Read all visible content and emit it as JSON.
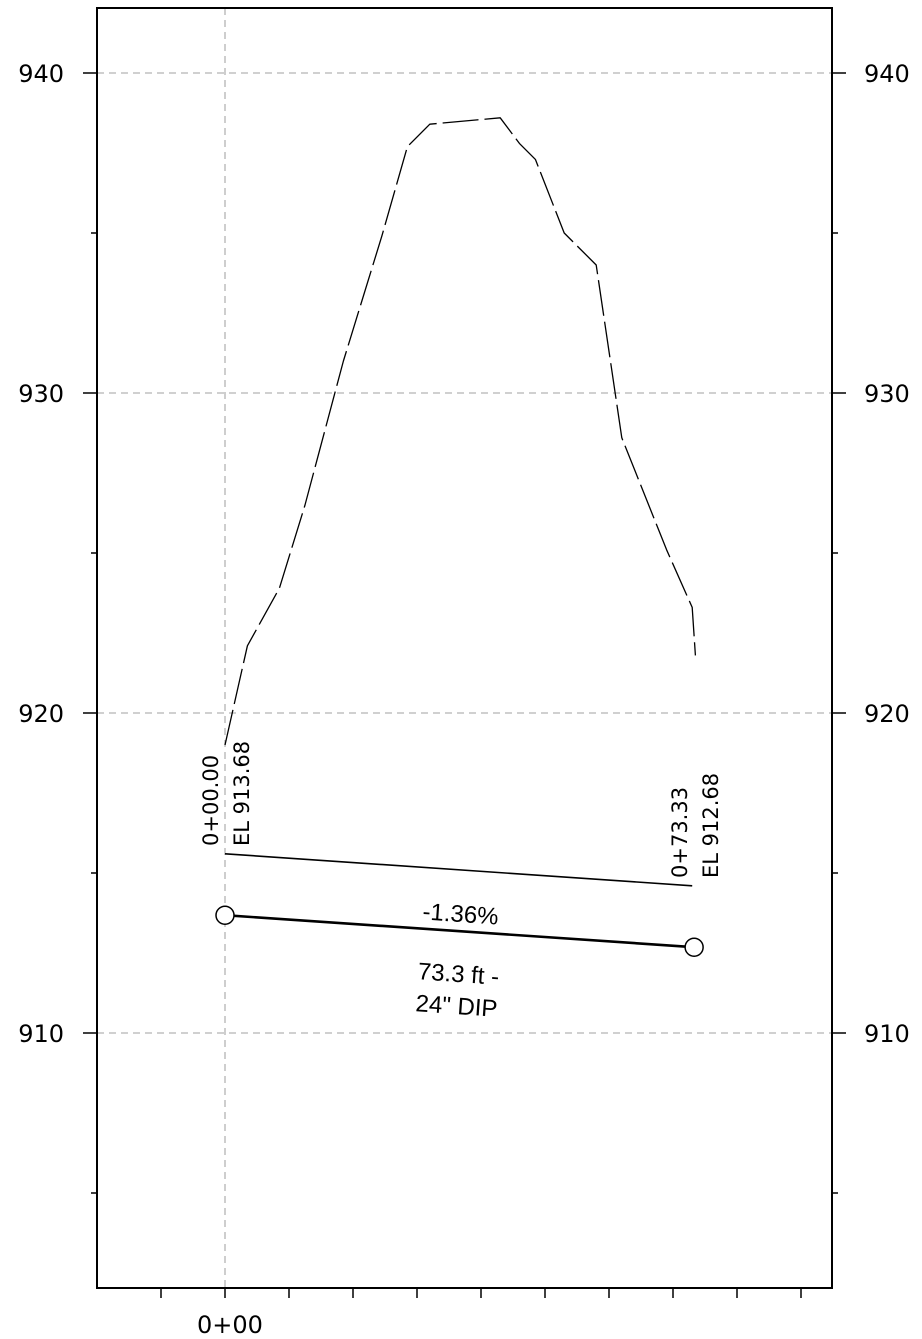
{
  "chart_data": {
    "type": "line",
    "title": "",
    "xlabel": "",
    "ylabel": "",
    "ylim": [
      902.2,
      941.9
    ],
    "xlim": [
      -2,
      9
    ],
    "grid": true,
    "y_ticks": [
      940,
      930,
      920,
      910
    ],
    "y_tick_labels": [
      "940",
      "930",
      "920",
      "910"
    ],
    "y_minor_ticks": [
      935,
      925,
      915,
      905
    ],
    "x_tick_labels": [
      {
        "x": 0,
        "label": "0+00"
      }
    ],
    "x_minor_ticks": [
      -1,
      0,
      1,
      2,
      3,
      4,
      5,
      6,
      7,
      8,
      9
    ],
    "series": [
      {
        "style": "dashed",
        "description": "existing ground profile",
        "x": [
          0,
          0.35,
          0.85,
          1.25,
          1.85,
          2.45,
          2.85,
          3.2,
          4.3,
          4.6,
          4.85,
          5.3,
          5.8,
          6.2,
          6.9,
          7.3,
          7.35
        ],
        "y": [
          919.0,
          922.1,
          923.9,
          926.5,
          931.0,
          934.9,
          937.7,
          938.4,
          938.6,
          937.8,
          937.3,
          935.0,
          934.0,
          928.6,
          925.1,
          923.3,
          921.8
        ]
      },
      {
        "style": "solid",
        "description": "pipe label line",
        "x": [
          0,
          7.3
        ],
        "y": [
          915.6,
          914.6
        ]
      },
      {
        "style": "solid-thick",
        "description": "pipe profile",
        "x": [
          0,
          7.33
        ],
        "y": [
          913.68,
          912.68
        ]
      }
    ],
    "points": [
      {
        "x": 0,
        "y": 913.68
      },
      {
        "x": 7.33,
        "y": 912.68
      }
    ],
    "annotations": {
      "start_station": "0+00.00",
      "start_elev": "EL 913.68",
      "end_station": "0+73.33",
      "end_elev": "EL 912.68",
      "slope": "-1.36%",
      "pipe_length": "73.3 ft -",
      "pipe_material": "24\" DIP"
    }
  }
}
